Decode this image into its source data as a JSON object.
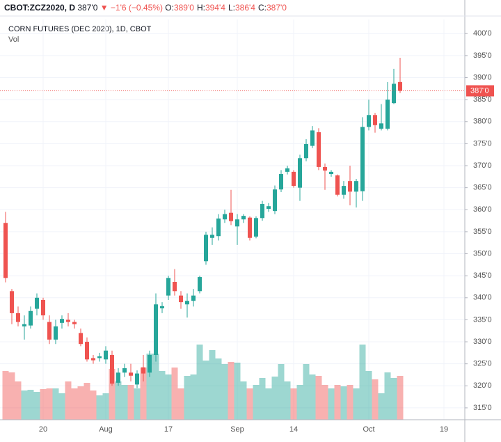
{
  "header": {
    "symbol": "CBOT:ZCZ2020, D",
    "price": "387'0",
    "change": "▼ −1'6 (−0.45%)",
    "ohlc": [
      {
        "k": "O:",
        "v": "389'0"
      },
      {
        "k": "H:",
        "v": "394'4"
      },
      {
        "k": "L:",
        "v": "386'4"
      },
      {
        "k": "C:",
        "v": "387'0"
      }
    ]
  },
  "chart_data": {
    "type": "candlestick",
    "title": "CORN FUTURES (DEC 2020), 1D, CBOT",
    "volume_label": "Vol",
    "up_color": "#26a69a",
    "down_color": "#ef5350",
    "grid": true,
    "ylim": [
      312.3,
      403.2
    ],
    "yticks": [
      {
        "value": 315,
        "label": "315'0"
      },
      {
        "value": 320,
        "label": "320'0"
      },
      {
        "value": 325,
        "label": "325'0"
      },
      {
        "value": 330,
        "label": "330'0"
      },
      {
        "value": 335,
        "label": "335'0"
      },
      {
        "value": 340,
        "label": "340'0"
      },
      {
        "value": 345,
        "label": "345'0"
      },
      {
        "value": 350,
        "label": "350'0"
      },
      {
        "value": 355,
        "label": "355'0"
      },
      {
        "value": 360,
        "label": "360'0"
      },
      {
        "value": 365,
        "label": "365'0"
      },
      {
        "value": 370,
        "label": "370'0"
      },
      {
        "value": 375,
        "label": "375'0"
      },
      {
        "value": 380,
        "label": "380'0"
      },
      {
        "value": 385,
        "label": "385'0"
      },
      {
        "value": 390,
        "label": "390'0"
      },
      {
        "value": 395,
        "label": "395'0"
      },
      {
        "value": 400,
        "label": "400'0"
      }
    ],
    "last_price": {
      "value": 387,
      "label": "387'0"
    },
    "categories": [
      null,
      null,
      null,
      null,
      null,
      null,
      "20",
      null,
      null,
      null,
      null,
      null,
      null,
      null,
      null,
      null,
      "Aug",
      null,
      null,
      null,
      null,
      null,
      null,
      null,
      null,
      null,
      "17",
      null,
      null,
      null,
      null,
      null,
      null,
      null,
      null,
      null,
      null,
      "Sep",
      null,
      null,
      null,
      null,
      null,
      null,
      null,
      null,
      "14",
      null,
      null,
      null,
      null,
      null,
      null,
      null,
      null,
      null,
      null,
      null,
      "Oct",
      null,
      null,
      null,
      null,
      null,
      null,
      null,
      null,
      null,
      null,
      null,
      "19"
    ],
    "open": [
      357,
      341.5,
      336.5,
      333.5,
      333.7,
      337.5,
      339.5,
      334.5,
      330.5,
      334.3,
      335,
      334.5,
      332,
      330,
      326.3,
      326.3,
      326,
      327,
      320.7,
      323,
      323,
      320.3,
      324.2,
      323,
      327,
      337.6,
      340.5,
      343.6,
      340.5,
      338.5,
      339.3,
      341.5,
      348.3,
      353.6,
      354,
      357.8,
      359.3,
      356.2,
      357.8,
      358.2,
      353.9,
      358.1,
      360.2,
      359.7,
      364.6,
      368.6,
      368.6,
      365,
      371.7,
      374.5,
      377.6,
      369.7,
      368.1,
      367.8,
      363.4,
      366.5,
      364.1,
      364.2,
      378.8,
      381.5,
      378.4,
      378.4,
      384.2,
      389,
      null,
      null,
      null,
      null,
      null,
      null,
      null
    ],
    "high": [
      359.5,
      342,
      338,
      336,
      338,
      341,
      340,
      336,
      335,
      336,
      336.5,
      335,
      333,
      331,
      327,
      327.5,
      329,
      328,
      324,
      325,
      325,
      323.5,
      327,
      328,
      341,
      339,
      345,
      346.5,
      341.5,
      341,
      342,
      345,
      355,
      356,
      359,
      360,
      364.5,
      359,
      359,
      358.5,
      358.5,
      362,
      361.5,
      365.5,
      369,
      370,
      369,
      372.5,
      376,
      379,
      378.5,
      370.5,
      369,
      368,
      366.5,
      370,
      367,
      381,
      385,
      382,
      384,
      389,
      392,
      394.5,
      null,
      null,
      null,
      null,
      null,
      null,
      null
    ],
    "low": [
      343.5,
      334,
      333.5,
      330.5,
      333,
      336,
      335,
      329.5,
      329.5,
      333,
      333.5,
      333,
      329,
      325.5,
      325,
      325.5,
      325,
      320,
      320,
      322,
      321,
      319.5,
      321,
      322,
      325.5,
      336.5,
      339.5,
      340.5,
      337.5,
      335.5,
      338,
      341,
      347.5,
      352,
      353,
      357,
      356.5,
      352,
      357,
      353,
      353.5,
      357.5,
      359.5,
      359,
      364,
      368,
      365,
      362,
      371,
      374,
      369,
      364.5,
      367.5,
      363,
      362.5,
      361,
      360.5,
      362,
      378,
      377.5,
      378,
      378,
      384,
      386.5,
      null,
      null,
      null,
      null,
      null,
      null,
      null
    ],
    "close": [
      344.5,
      336.5,
      334.5,
      334,
      337,
      340,
      336,
      330.5,
      333.5,
      335.2,
      334.5,
      334,
      329.5,
      326,
      325.8,
      326.7,
      328,
      320.5,
      323,
      324,
      322.3,
      322.8,
      322.8,
      327,
      338.5,
      338.1,
      344.5,
      341.5,
      339,
      339.3,
      340.5,
      344.7,
      354.3,
      354.3,
      358,
      359,
      357.4,
      357.8,
      358.6,
      353.6,
      358.1,
      361.3,
      360.8,
      364.6,
      368.1,
      369.4,
      365.4,
      371.7,
      374.9,
      378,
      369.7,
      368.9,
      368.6,
      363.4,
      365.4,
      364.1,
      366.5,
      378.8,
      381.5,
      379.2,
      379.6,
      385,
      388.6,
      387,
      null,
      null,
      null,
      null,
      null,
      null,
      null
    ],
    "volume": [
      70,
      68,
      55,
      42,
      43,
      40,
      44,
      45,
      45,
      38,
      55,
      45,
      48,
      53,
      42,
      35,
      38,
      73,
      55,
      50,
      50,
      45,
      75,
      95,
      95,
      70,
      65,
      75,
      45,
      63,
      65,
      108,
      85,
      100,
      88,
      80,
      83,
      82,
      55,
      45,
      50,
      60,
      45,
      62,
      80,
      55,
      45,
      50,
      80,
      65,
      63,
      50,
      45,
      50,
      48,
      50,
      45,
      108,
      70,
      58,
      38,
      68,
      60,
      63,
      null,
      null,
      null,
      null,
      null,
      null,
      null
    ]
  }
}
